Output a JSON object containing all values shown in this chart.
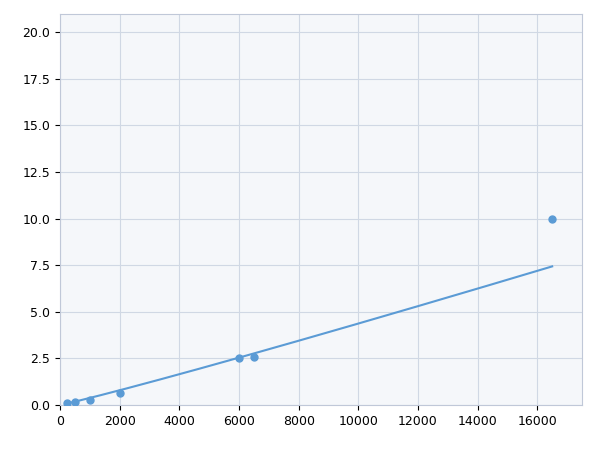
{
  "x_points": [
    250,
    500,
    1000,
    2000,
    6000,
    6500,
    16500
  ],
  "y_points": [
    0.13,
    0.18,
    0.25,
    0.65,
    2.5,
    2.6,
    10.0
  ],
  "line_color": "#5b9bd5",
  "marker_color": "#5b9bd5",
  "marker_size": 5,
  "marker_style": "o",
  "xlim": [
    0,
    17500
  ],
  "ylim": [
    0,
    21.0
  ],
  "xticks": [
    0,
    2000,
    4000,
    6000,
    8000,
    10000,
    12000,
    14000,
    16000
  ],
  "yticks": [
    0.0,
    2.5,
    5.0,
    7.5,
    10.0,
    12.5,
    15.0,
    17.5,
    20.0
  ],
  "grid_color": "#d0d8e4",
  "background_color": "#f5f7fa",
  "figure_background": "#ffffff",
  "linewidth": 1.5
}
